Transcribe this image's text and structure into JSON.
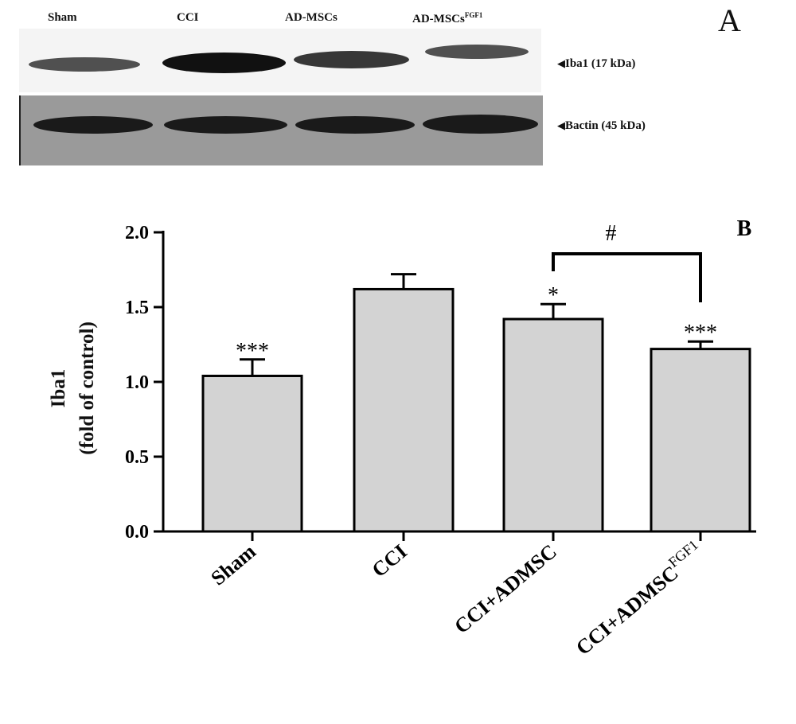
{
  "panel_a": {
    "letter": "A",
    "lanes": [
      {
        "label": "Sham",
        "sup": ""
      },
      {
        "label": "CCI",
        "sup": ""
      },
      {
        "label": "AD-MSCs",
        "sup": ""
      },
      {
        "label": "AD-MSCs",
        "sup": "FGF1"
      }
    ],
    "blots": [
      {
        "label": "Iba1 (17 kDa)",
        "arrow": "◀"
      },
      {
        "label": "Bactin (45 kDa)",
        "arrow": "◀"
      }
    ]
  },
  "chart_data": {
    "type": "bar",
    "panel_letter": "B",
    "categories": [
      "Sham",
      "CCI",
      "CCI+ADMSC",
      "CCI+ADMSC"
    ],
    "category_sup": [
      "",
      "",
      "",
      "FGF1"
    ],
    "values": [
      1.04,
      1.62,
      1.42,
      1.22
    ],
    "errors": [
      0.11,
      0.1,
      0.1,
      0.05
    ],
    "significance": [
      "***",
      "",
      "*",
      "***"
    ],
    "comparison": {
      "from": 2,
      "to": 3,
      "label": "#"
    },
    "ylabel": "Iba1",
    "ylabel_line2": "(fold of control)",
    "ylim": [
      0,
      2.0
    ],
    "yticks": [
      "0.0",
      "0.5",
      "1.0",
      "1.5",
      "2.0"
    ],
    "bar_color": "#d3d3d3",
    "grid": false
  }
}
